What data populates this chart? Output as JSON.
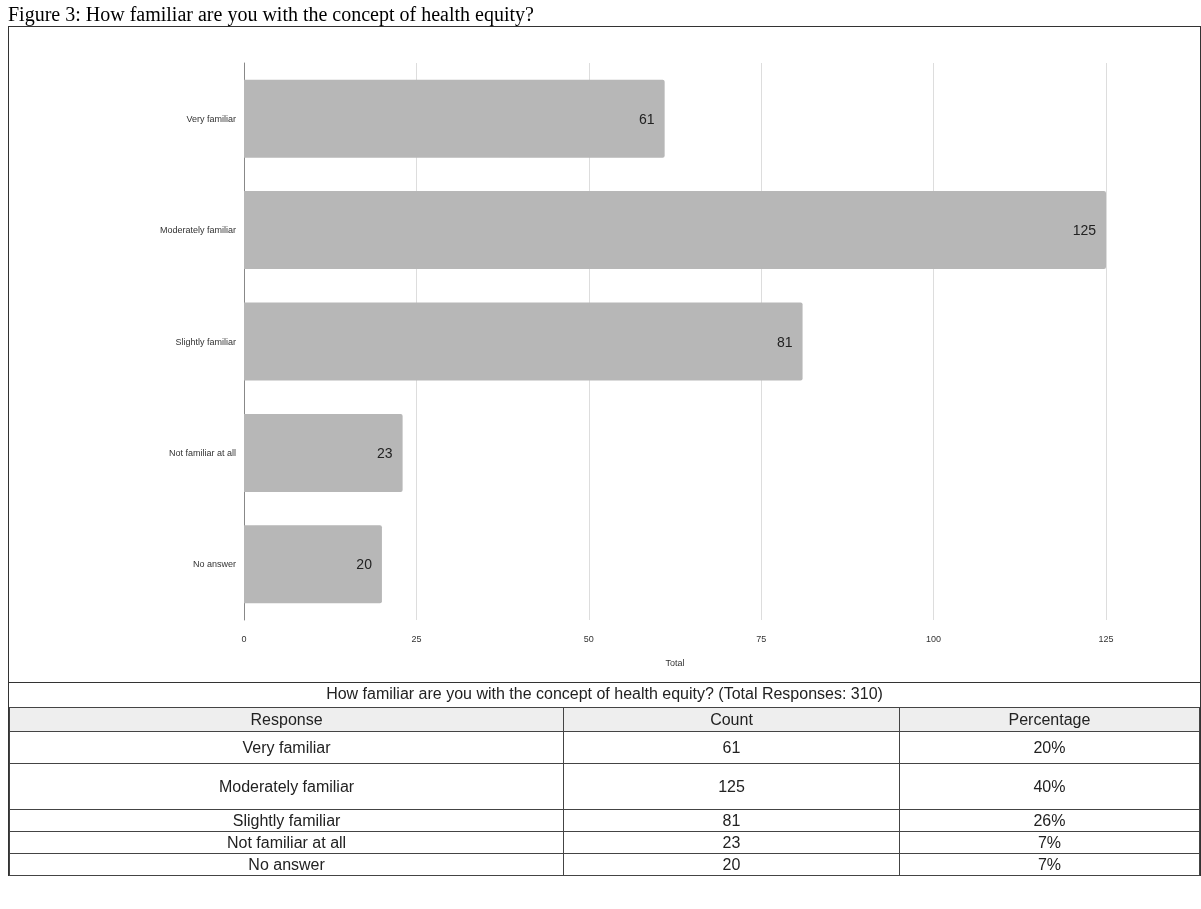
{
  "chart_data": [
    {
      "type": "bar",
      "title": "Figure 3: How familiar are you with the concept of health equity?",
      "orientation": "horizontal",
      "categories": [
        "Very familiar",
        "Moderately familiar",
        "Slightly familiar",
        "Not familiar at all",
        "No answer"
      ],
      "values": [
        61,
        125,
        81,
        23,
        20
      ],
      "color": "#b7b7b7",
      "xlim": [
        0,
        125
      ],
      "xticks": [
        0,
        25,
        50,
        75,
        100,
        125
      ],
      "xlabel": "Total",
      "grid": "x",
      "data_labels": true
    },
    {
      "type": "other",
      "title": "How familiar are you with the concept of health equity? (Total Responses: 310)",
      "annotations": [
        "Response",
        "Count",
        "Percentage",
        "Very familiar",
        "61",
        "20%",
        "Moderately familiar",
        "125",
        "40%",
        "Slightly familiar",
        "81",
        "26%",
        "Not familiar at all",
        "23",
        "7%",
        "No answer",
        "20",
        "7%"
      ]
    }
  ]
}
